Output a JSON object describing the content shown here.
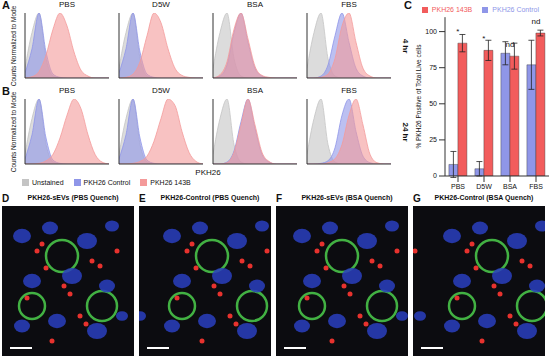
{
  "chart_data": [
    {
      "type": "area",
      "y_label": "Counts Normalized to Mode",
      "x_label": "PKH26",
      "xlim": [
        0,
        12
      ],
      "ylim": [
        0,
        100
      ],
      "tick_labels": false,
      "legend": "bottom",
      "x": [
        0,
        1,
        2,
        3,
        4,
        5,
        6,
        7,
        8,
        9,
        10,
        11,
        12
      ],
      "series": [
        {
          "name": "Unstained",
          "color": "#c4c4c4"
        },
        {
          "name": "PKH26 Control",
          "color": "#8f96e8"
        },
        {
          "name": "PKH26 143B",
          "color": "#f49a9a"
        }
      ],
      "rows": [
        {
          "panel": "A",
          "label": "4 hr",
          "subplots": [
            {
              "title": "PBS",
              "values": [
                [
                  15,
                  70,
                  100,
                  30,
                  3,
                  0,
                  0,
                  0,
                  0,
                  0,
                  0,
                  0,
                  0
                ],
                [
                  8,
                  45,
                  100,
                  40,
                  6,
                  1,
                  0,
                  0,
                  0,
                  0,
                  0,
                  0,
                  0
                ],
                [
                  0,
                  2,
                  10,
                  35,
                  75,
                  100,
                  80,
                  40,
                  12,
                  3,
                  0,
                  0,
                  0
                ]
              ]
            },
            {
              "title": "D5W",
              "values": [
                [
                  15,
                  70,
                  100,
                  30,
                  3,
                  0,
                  0,
                  0,
                  0,
                  0,
                  0,
                  0,
                  0
                ],
                [
                  8,
                  45,
                  100,
                  40,
                  6,
                  1,
                  0,
                  0,
                  0,
                  0,
                  0,
                  0,
                  0
                ],
                [
                  0,
                  1,
                  6,
                  25,
                  65,
                  100,
                  85,
                  45,
                  15,
                  4,
                  1,
                  0,
                  0
                ]
              ]
            },
            {
              "title": "BSA",
              "values": [
                [
                  15,
                  70,
                  100,
                  30,
                  3,
                  0,
                  0,
                  0,
                  0,
                  0,
                  0,
                  0,
                  0
                ],
                [
                  0,
                  3,
                  20,
                  70,
                  100,
                  55,
                  15,
                  3,
                  0,
                  0,
                  0,
                  0,
                  0
                ],
                [
                  0,
                  5,
                  25,
                  75,
                  100,
                  60,
                  18,
                  4,
                  1,
                  0,
                  0,
                  0,
                  0
                ]
              ]
            },
            {
              "title": "FBS",
              "values": [
                [
                  15,
                  70,
                  100,
                  30,
                  3,
                  0,
                  0,
                  0,
                  0,
                  0,
                  0,
                  0,
                  0
                ],
                [
                  0,
                  0,
                  3,
                  20,
                  65,
                  100,
                  55,
                  15,
                  3,
                  0,
                  0,
                  0,
                  0
                ],
                [
                  0,
                  0,
                  1,
                  6,
                  30,
                  80,
                  100,
                  55,
                  15,
                  3,
                  0,
                  0,
                  0
                ]
              ]
            }
          ]
        },
        {
          "panel": "B",
          "label": "24 hr",
          "subplots": [
            {
              "title": "PBS",
              "values": [
                [
                  15,
                  70,
                  100,
                  30,
                  3,
                  0,
                  0,
                  0,
                  0,
                  0,
                  0,
                  0,
                  0
                ],
                [
                  8,
                  45,
                  100,
                  40,
                  6,
                  1,
                  0,
                  0,
                  0,
                  0,
                  0,
                  0,
                  0
                ],
                [
                  0,
                  0,
                  1,
                  5,
                  15,
                  40,
                  75,
                  100,
                  85,
                  45,
                  15,
                  3,
                  0
                ]
              ]
            },
            {
              "title": "D5W",
              "values": [
                [
                  15,
                  70,
                  100,
                  30,
                  3,
                  0,
                  0,
                  0,
                  0,
                  0,
                  0,
                  0,
                  0
                ],
                [
                  8,
                  45,
                  100,
                  40,
                  6,
                  1,
                  0,
                  0,
                  0,
                  0,
                  0,
                  0,
                  0
                ],
                [
                  0,
                  0,
                  1,
                  4,
                  12,
                  35,
                  70,
                  100,
                  90,
                  50,
                  18,
                  4,
                  0
                ]
              ]
            },
            {
              "title": "BSA",
              "values": [
                [
                  15,
                  70,
                  100,
                  30,
                  3,
                  0,
                  0,
                  0,
                  0,
                  0,
                  0,
                  0,
                  0
                ],
                [
                  0,
                  0,
                  3,
                  20,
                  65,
                  100,
                  55,
                  15,
                  3,
                  0,
                  0,
                  0,
                  0
                ],
                [
                  0,
                  0,
                  2,
                  18,
                  60,
                  100,
                  60,
                  18,
                  4,
                  0,
                  0,
                  0,
                  0
                ]
              ]
            },
            {
              "title": "FBS",
              "values": [
                [
                  15,
                  70,
                  100,
                  30,
                  3,
                  0,
                  0,
                  0,
                  0,
                  0,
                  0,
                  0,
                  0
                ],
                [
                  0,
                  0,
                  1,
                  5,
                  25,
                  75,
                  100,
                  50,
                  12,
                  2,
                  0,
                  0,
                  0
                ],
                [
                  0,
                  0,
                  0,
                  2,
                  8,
                  30,
                  75,
                  100,
                  60,
                  15,
                  2,
                  0,
                  0
                ]
              ]
            }
          ]
        }
      ]
    },
    {
      "type": "bar",
      "panel": "C",
      "y_label": "% PKH26 Positive of Total Live cells",
      "categories": [
        "PBS",
        "D5W",
        "BSA",
        "FBS"
      ],
      "series": [
        {
          "name": "PKH26 Control",
          "color": "#8f96e8",
          "values": [
            8,
            5,
            85,
            77
          ],
          "errors": [
            9,
            5,
            8,
            17
          ]
        },
        {
          "name": "PKH26 143B",
          "color": "#f25c5c",
          "values": [
            92,
            87,
            83,
            99
          ],
          "errors": [
            6,
            7,
            9,
            2
          ]
        }
      ],
      "annotations": [
        "*",
        "*",
        "nd",
        "nd"
      ],
      "ylim": [
        0,
        110
      ],
      "yticks": [
        0,
        25,
        50,
        75,
        100
      ],
      "legend": "top"
    }
  ],
  "images": [
    {
      "panel": "D",
      "title": "PKH26-sEVs (PBS Quench)"
    },
    {
      "panel": "E",
      "title": "PKH26-Control (PBS Quench)"
    },
    {
      "panel": "F",
      "title": "PKH26-sEVs (BSA Quench)"
    },
    {
      "panel": "G",
      "title": "PKH26-Control (BSA Quench)"
    }
  ]
}
